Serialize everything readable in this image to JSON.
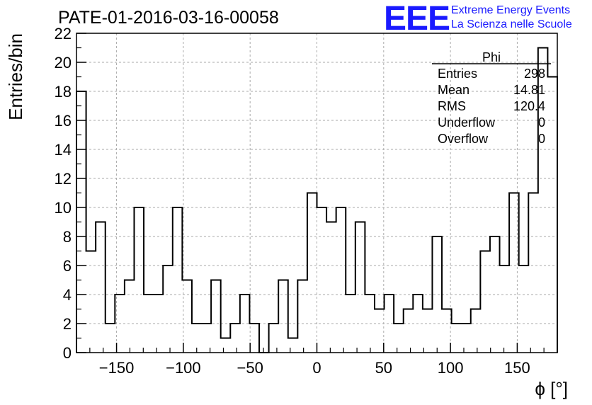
{
  "chart_data": {
    "type": "bar",
    "title": "PATE-01-2016-03-16-00058",
    "xlabel": "ϕ [°]",
    "ylabel": "Entries/bin",
    "xlim": [
      -180,
      180
    ],
    "ylim": [
      0,
      22
    ],
    "x_ticks": [
      -150,
      -100,
      -50,
      0,
      50,
      100,
      150
    ],
    "y_ticks": [
      0,
      2,
      4,
      6,
      8,
      10,
      12,
      14,
      16,
      18,
      20,
      22
    ],
    "x_tick_labels": [
      "−150",
      "−100",
      "−50",
      "0",
      "50",
      "100",
      "150"
    ],
    "y_tick_labels": [
      "0",
      "2",
      "4",
      "6",
      "8",
      "10",
      "12",
      "14",
      "16",
      "18",
      "20",
      "22"
    ],
    "grid": true,
    "bin_width": 7.2,
    "bin_edges_start": -180,
    "values": [
      18,
      7,
      9,
      2,
      4,
      5,
      10,
      4,
      4,
      6,
      10,
      5,
      2,
      2,
      5,
      1,
      2,
      4,
      2,
      0,
      2,
      5,
      1,
      5,
      11,
      10,
      9,
      10,
      4,
      9,
      4,
      3,
      4,
      2,
      3,
      4,
      3,
      8,
      3,
      2,
      2,
      3,
      7,
      8,
      6,
      11,
      6,
      11,
      21,
      19
    ],
    "legend_position": "top-right"
  },
  "stats": {
    "name": "Phi",
    "rows": [
      {
        "label": "Entries",
        "value": "298"
      },
      {
        "label": "Mean",
        "value": "14.81"
      },
      {
        "label": "RMS",
        "value": "120.4"
      },
      {
        "label": "Underflow",
        "value": "0"
      },
      {
        "label": "Overflow",
        "value": "0"
      }
    ]
  },
  "logo": {
    "mark": "EEE",
    "line1": "Extreme Energy Events",
    "line2": "La Scienza nelle Scuole",
    "color": "#1a1aff"
  }
}
